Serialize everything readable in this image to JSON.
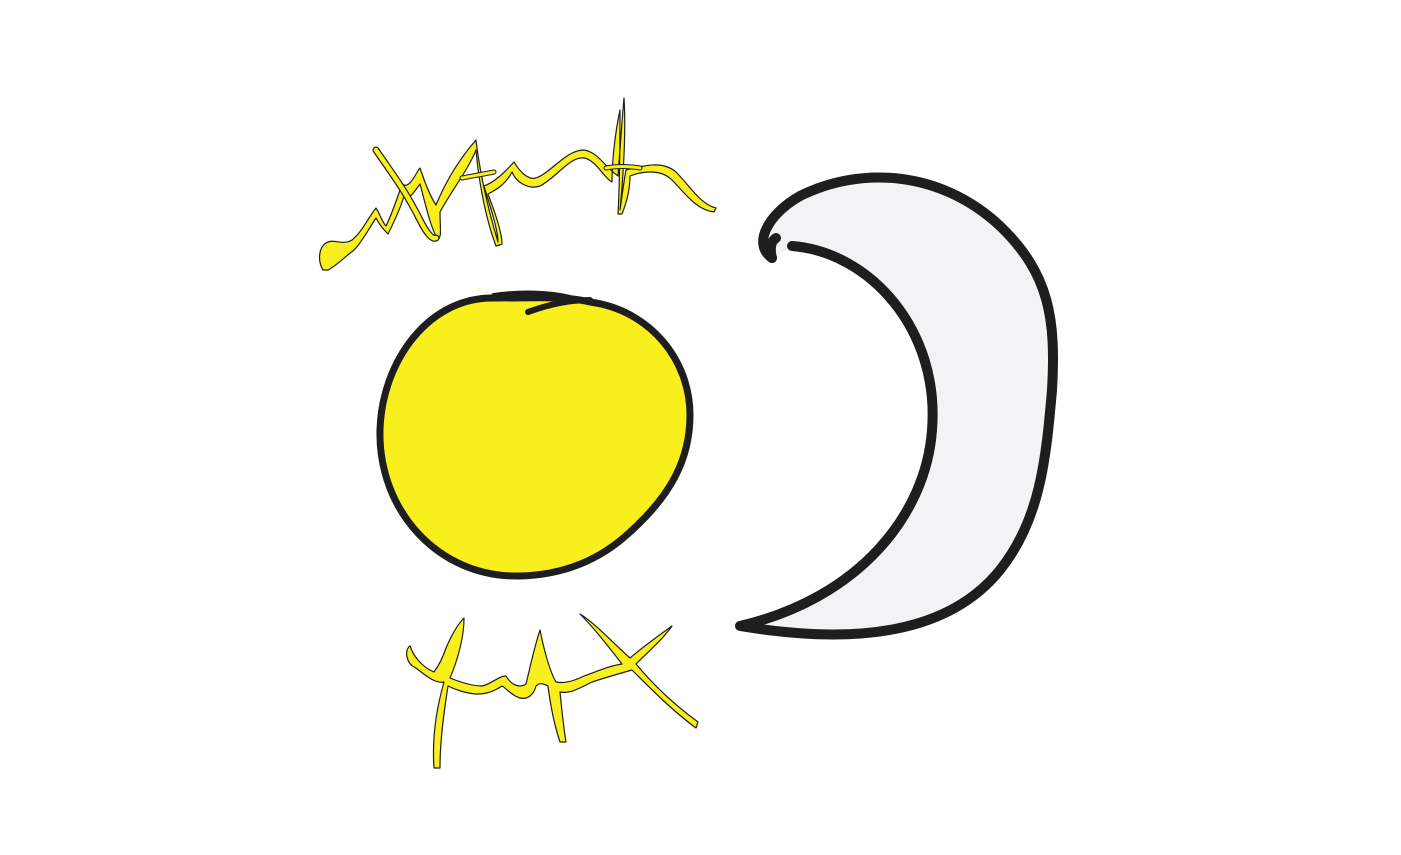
{
  "drawing": {
    "elements": [
      {
        "name": "sun-icon",
        "kind": "sun",
        "fill": "#f9ef1d",
        "stroke": "#1e1e1e"
      },
      {
        "name": "crescent-moon-icon",
        "kind": "crescent-moon",
        "fill": "#f1f3f5",
        "stroke": "#1e1e1e"
      },
      {
        "name": "sun-rays-top-scribble",
        "kind": "scribble",
        "fill": "#f9ef1d",
        "stroke": "#1e1e1e"
      },
      {
        "name": "sun-rays-bottom-scribble",
        "kind": "scribble",
        "fill": "#f9ef1d",
        "stroke": "#1e1e1e"
      }
    ],
    "colors": {
      "background": "#ffffff",
      "sun": "#f9ef1d",
      "moon": "#f1f3f5",
      "outline": "#1e1e1e"
    }
  }
}
